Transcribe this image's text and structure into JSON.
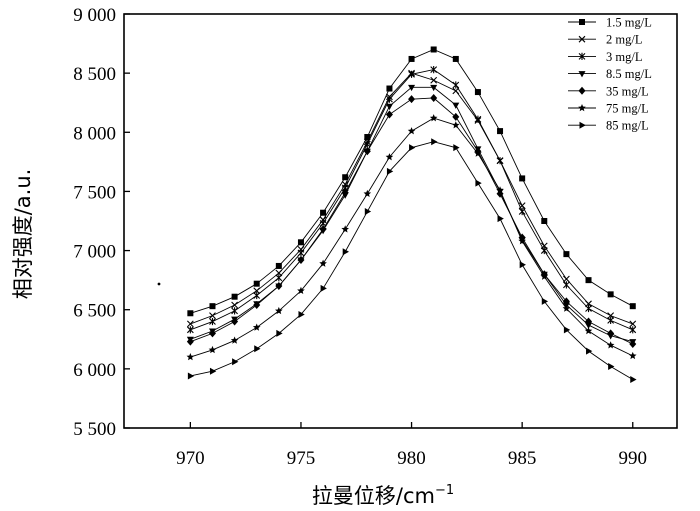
{
  "chart_data": {
    "type": "line",
    "title": "",
    "xlabel": "拉曼位移/cm",
    "xlabel_superscript": "−1",
    "ylabel": "相对强度/a.u.",
    "xlim": [
      967,
      992
    ],
    "ylim": [
      5500,
      9000
    ],
    "xticks": [
      970,
      975,
      980,
      985,
      990
    ],
    "yticks": [
      5500,
      6000,
      6500,
      7000,
      7500,
      8000,
      8500,
      9000
    ],
    "ytick_labels": [
      "5 500",
      "6 000",
      "6 500",
      "7 000",
      "7 500",
      "8 000",
      "8 500",
      "9 000"
    ],
    "grid": false,
    "legend_position": "top-right",
    "x": [
      970,
      971,
      972,
      973,
      974,
      975,
      976,
      977,
      978,
      979,
      980,
      981,
      982,
      983,
      984,
      985,
      986,
      987,
      988,
      989,
      990
    ],
    "series": [
      {
        "name": "1.5 mg/L",
        "marker": "square",
        "values": [
          6470,
          6530,
          6610,
          6720,
          6870,
          7070,
          7320,
          7620,
          7960,
          8370,
          8620,
          8700,
          8620,
          8340,
          8010,
          7610,
          7250,
          6970,
          6750,
          6630,
          6530
        ]
      },
      {
        "name": "2 mg/L",
        "marker": "x",
        "values": [
          6380,
          6450,
          6540,
          6660,
          6810,
          7010,
          7260,
          7560,
          7920,
          8300,
          8500,
          8440,
          8350,
          8100,
          7760,
          7380,
          7040,
          6760,
          6550,
          6450,
          6380
        ]
      },
      {
        "name": "3 mg/L",
        "marker": "asterisk",
        "values": [
          6330,
          6400,
          6490,
          6620,
          6770,
          6980,
          7230,
          7530,
          7900,
          8280,
          8490,
          8530,
          8400,
          8110,
          7760,
          7330,
          7000,
          6710,
          6510,
          6410,
          6330
        ]
      },
      {
        "name": "8.5 mg/L",
        "marker": "triangle-down",
        "values": [
          6250,
          6320,
          6420,
          6550,
          6700,
          6920,
          7170,
          7470,
          7840,
          8220,
          8380,
          8380,
          8230,
          7860,
          7500,
          7090,
          6800,
          6540,
          6370,
          6280,
          6230
        ]
      },
      {
        "name": "35 mg/L",
        "marker": "diamond",
        "values": [
          6230,
          6300,
          6400,
          6540,
          6700,
          6920,
          7180,
          7490,
          7840,
          8150,
          8280,
          8290,
          8130,
          7840,
          7480,
          7110,
          6800,
          6570,
          6400,
          6300,
          6210
        ]
      },
      {
        "name": "75 mg/L",
        "marker": "star",
        "values": [
          6100,
          6160,
          6240,
          6350,
          6490,
          6660,
          6890,
          7180,
          7480,
          7790,
          8010,
          8120,
          8060,
          7820,
          7510,
          7080,
          6780,
          6510,
          6320,
          6200,
          6110
        ]
      },
      {
        "name": "85 mg/L",
        "marker": "triangle-right",
        "values": [
          5940,
          5980,
          6060,
          6170,
          6300,
          6460,
          6680,
          6990,
          7330,
          7670,
          7870,
          7920,
          7870,
          7570,
          7270,
          6880,
          6570,
          6330,
          6150,
          6020,
          5910
        ]
      }
    ]
  }
}
